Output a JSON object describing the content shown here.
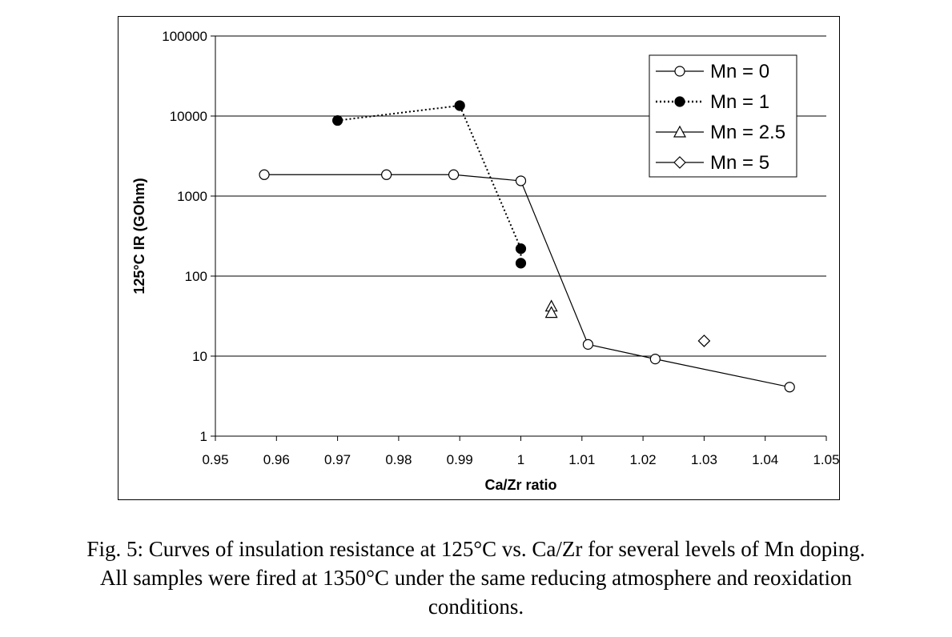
{
  "chart_data": {
    "type": "scatter",
    "xlabel": "Ca/Zr ratio",
    "ylabel": "125°C IR (GOhm)",
    "xlim": [
      0.95,
      1.05
    ],
    "ylim": [
      1,
      100000
    ],
    "yscale": "log",
    "grid": "horizontal",
    "legend_position": "top-right",
    "x_ticks": [
      "0.95",
      "0.96",
      "0.97",
      "0.98",
      "0.99",
      "1",
      "1.01",
      "1.02",
      "1.03",
      "1.04",
      "1.05"
    ],
    "y_ticks": [
      "1",
      "10",
      "100",
      "1000",
      "10000",
      "100000"
    ],
    "series": [
      {
        "name": "Mn = 0",
        "marker": "circle-open",
        "line": "solid",
        "points": [
          [
            0.958,
            1850
          ],
          [
            0.978,
            1850
          ],
          [
            0.989,
            1850
          ],
          [
            1.0,
            1550
          ],
          [
            1.011,
            14
          ],
          [
            1.022,
            9.2
          ],
          [
            1.044,
            4.1
          ]
        ]
      },
      {
        "name": "Mn = 1",
        "marker": "circle-filled",
        "line": "dotted",
        "points": [
          [
            0.97,
            8800
          ],
          [
            0.99,
            13500
          ],
          [
            1.0,
            220
          ],
          [
            1.0,
            145
          ]
        ]
      },
      {
        "name": "Mn = 2.5",
        "marker": "triangle-open",
        "line": "none",
        "points": [
          [
            1.005,
            42
          ],
          [
            1.005,
            35
          ]
        ]
      },
      {
        "name": "Mn = 5",
        "marker": "diamond-open",
        "line": "none",
        "points": [
          [
            1.03,
            15.5
          ]
        ]
      }
    ]
  },
  "caption": {
    "line1": "Fig. 5: Curves of insulation resistance at 125°C vs. Ca/Zr for several levels of Mn doping.",
    "line2": "All samples were fired at 1350°C under the same reducing atmosphere and reoxidation",
    "line3": "conditions."
  }
}
